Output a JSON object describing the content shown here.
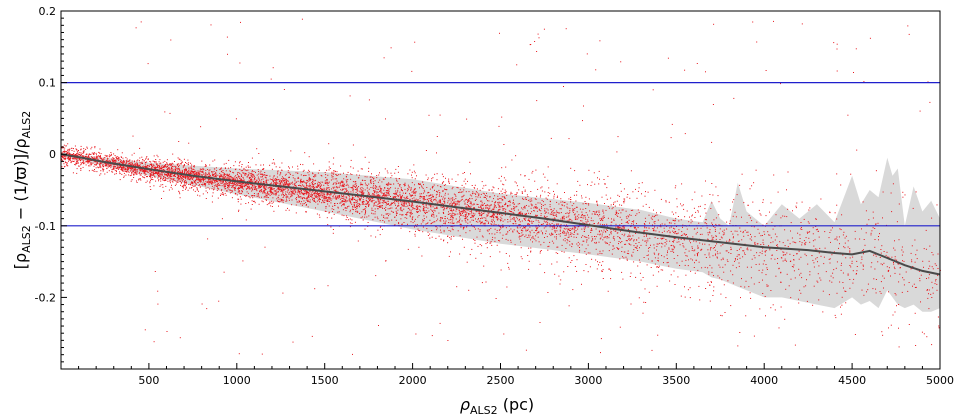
{
  "chart_data": {
    "type": "scatter",
    "xlabel": "ρALS2 (pc)",
    "xlabel_main": "ρ",
    "xlabel_sub": "ALS2",
    "xlabel_unit": " (pc)",
    "ylabel": "[ρALS2 − (1/ϖ)]/ρALS2",
    "ylabel_parts": [
      "[ρ",
      "ALS2",
      " − (1/ϖ)]/ρ",
      "ALS2"
    ],
    "xlim": [
      0,
      5000
    ],
    "ylim": [
      -0.3,
      0.2
    ],
    "x_ticks": [
      500,
      1000,
      1500,
      2000,
      2500,
      3000,
      3500,
      4000,
      4500,
      5000
    ],
    "x_tick_labels": [
      "500",
      "1000",
      "1500",
      "2000",
      "2500",
      "3000",
      "3500",
      "4000",
      "4500",
      "5000"
    ],
    "y_ticks": [
      0.2,
      0.1,
      0,
      -0.1,
      -0.2
    ],
    "y_tick_labels": [
      "0.2",
      "0.1",
      "0",
      "-0.1",
      "-0.2"
    ],
    "reference_lines": [
      0.1,
      -0.1
    ],
    "grid": false,
    "colors": {
      "points": "#e8141b",
      "median": "#4a4a4a",
      "band": "#d9d9d9",
      "reference": "#1f1fcc",
      "axis": "#000000"
    },
    "median_line": {
      "x": [
        0,
        100,
        250,
        500,
        750,
        1000,
        1250,
        1500,
        1750,
        2000,
        2250,
        2500,
        2750,
        3000,
        3250,
        3500,
        3750,
        4000,
        4250,
        4400,
        4500,
        4600,
        4700,
        4800,
        4900,
        5000
      ],
      "y": [
        0,
        -0.004,
        -0.011,
        -0.021,
        -0.03,
        -0.038,
        -0.045,
        -0.052,
        -0.059,
        -0.066,
        -0.074,
        -0.082,
        -0.09,
        -0.099,
        -0.108,
        -0.116,
        -0.123,
        -0.13,
        -0.134,
        -0.138,
        -0.14,
        -0.135,
        -0.145,
        -0.155,
        -0.163,
        -0.168
      ]
    },
    "band": {
      "x": [
        0,
        500,
        1000,
        1500,
        2000,
        2500,
        3000,
        3300,
        3500,
        3650,
        3700,
        3750,
        3800,
        3850,
        3900,
        4000,
        4100,
        4200,
        4300,
        4400,
        4500,
        4550,
        4600,
        4650,
        4700,
        4730,
        4760,
        4800,
        4850,
        4900,
        4950,
        5000
      ],
      "upper": [
        0.002,
        -0.012,
        -0.02,
        -0.025,
        -0.035,
        -0.055,
        -0.068,
        -0.078,
        -0.09,
        -0.095,
        -0.065,
        -0.09,
        -0.1,
        -0.04,
        -0.08,
        -0.1,
        -0.07,
        -0.09,
        -0.07,
        -0.095,
        -0.03,
        -0.07,
        -0.05,
        -0.06,
        -0.005,
        -0.03,
        -0.02,
        -0.1,
        -0.045,
        -0.08,
        -0.065,
        -0.09
      ],
      "lower": [
        -0.003,
        -0.03,
        -0.056,
        -0.08,
        -0.105,
        -0.125,
        -0.14,
        -0.15,
        -0.16,
        -0.165,
        -0.172,
        -0.175,
        -0.18,
        -0.185,
        -0.19,
        -0.2,
        -0.2,
        -0.205,
        -0.21,
        -0.215,
        -0.2,
        -0.21,
        -0.205,
        -0.215,
        -0.19,
        -0.2,
        -0.21,
        -0.215,
        -0.21,
        -0.22,
        -0.22,
        -0.215
      ]
    },
    "scatter_density": [
      {
        "x_range": [
          0,
          500
        ],
        "count": 900,
        "spread": 0.012
      },
      {
        "x_range": [
          500,
          1000
        ],
        "count": 1100,
        "spread": 0.016
      },
      {
        "x_range": [
          1000,
          1500
        ],
        "count": 1100,
        "spread": 0.022
      },
      {
        "x_range": [
          1500,
          2000
        ],
        "count": 1000,
        "spread": 0.03
      },
      {
        "x_range": [
          2000,
          2500
        ],
        "count": 900,
        "spread": 0.038
      },
      {
        "x_range": [
          2500,
          3000
        ],
        "count": 750,
        "spread": 0.046
      },
      {
        "x_range": [
          3000,
          3500
        ],
        "count": 550,
        "spread": 0.055
      },
      {
        "x_range": [
          3500,
          4000
        ],
        "count": 400,
        "spread": 0.06
      },
      {
        "x_range": [
          4000,
          4500
        ],
        "count": 280,
        "spread": 0.065
      },
      {
        "x_range": [
          4500,
          5000
        ],
        "count": 200,
        "spread": 0.07
      }
    ],
    "scatter_outlier_count": 260
  }
}
